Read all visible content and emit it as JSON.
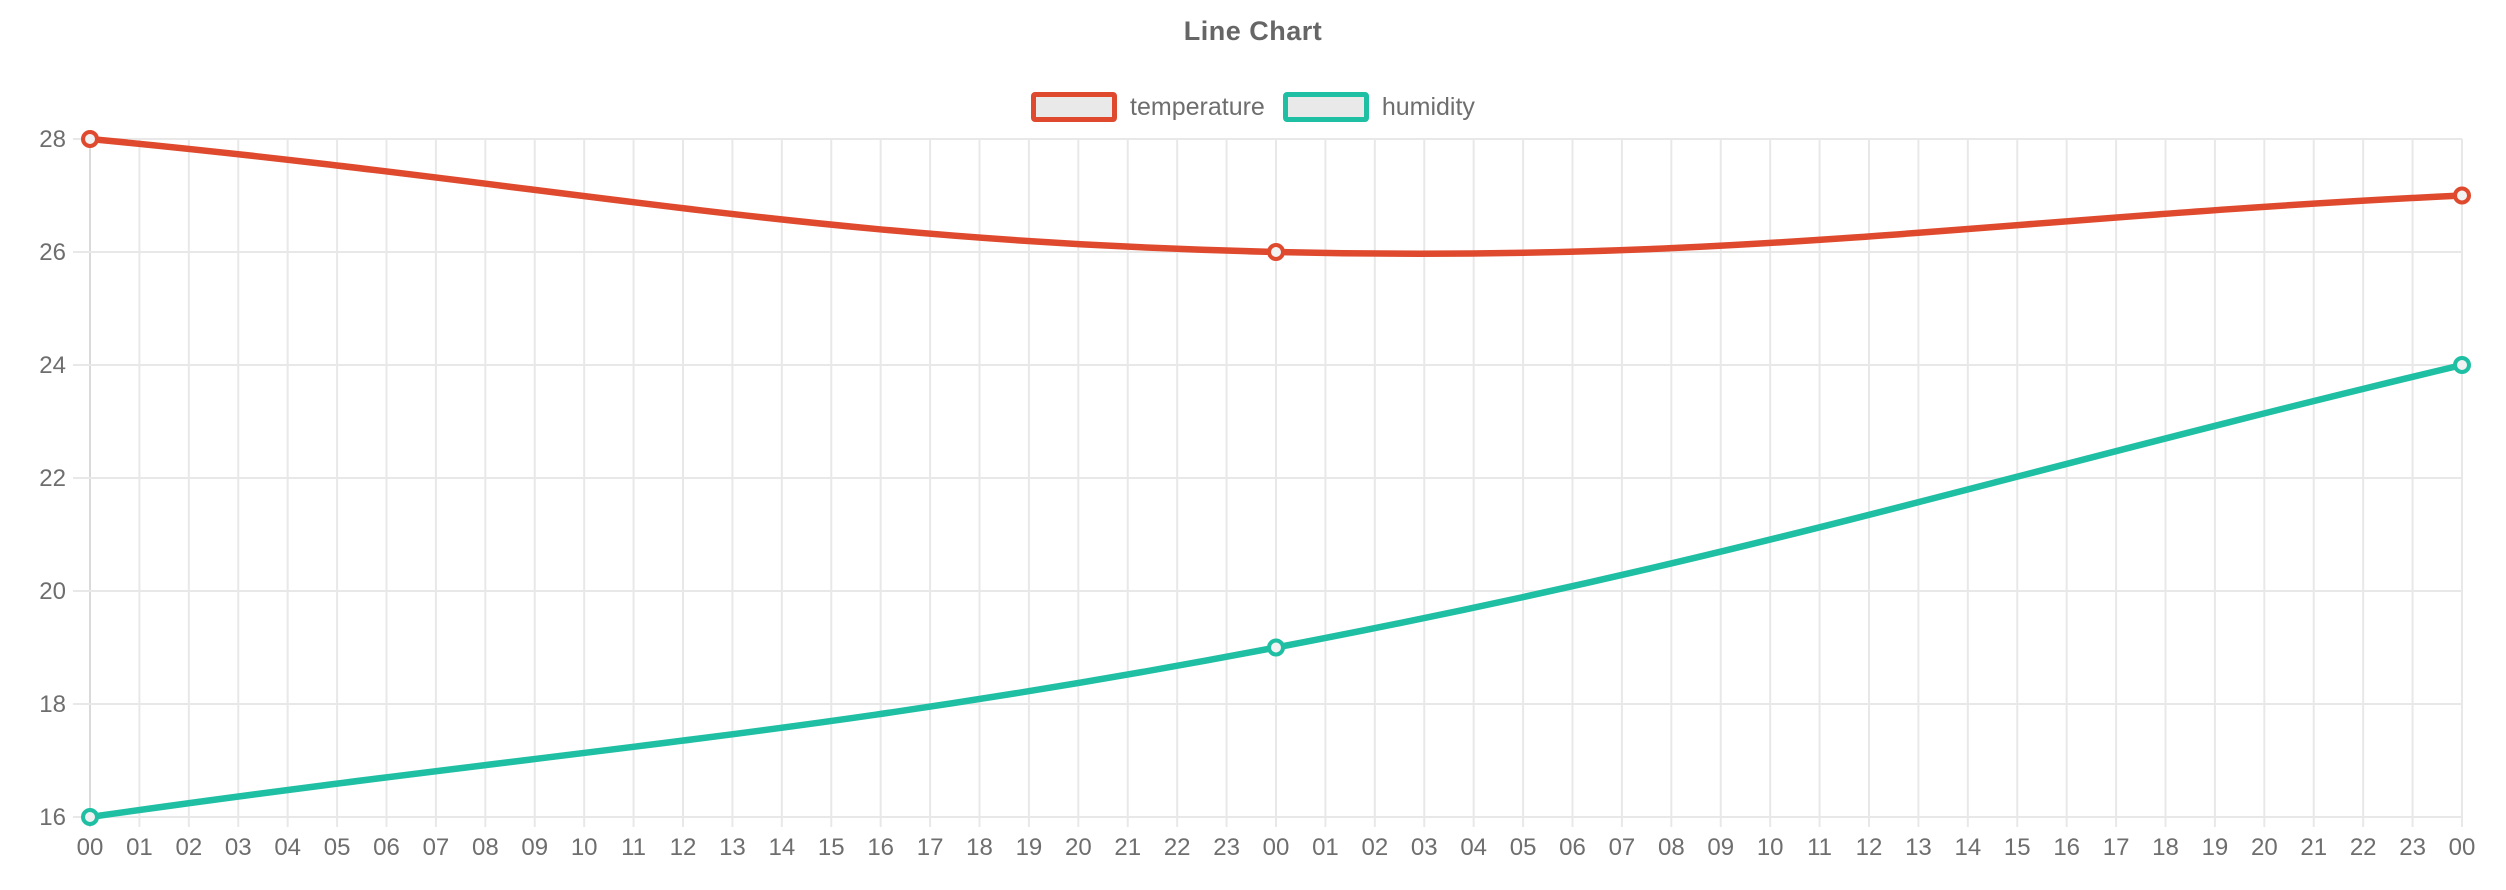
{
  "chart_data": {
    "type": "line",
    "title": "Line Chart",
    "categories": [
      "00",
      "01",
      "02",
      "03",
      "04",
      "05",
      "06",
      "07",
      "08",
      "09",
      "10",
      "11",
      "12",
      "13",
      "14",
      "15",
      "16",
      "17",
      "18",
      "19",
      "20",
      "21",
      "22",
      "23",
      "00",
      "01",
      "02",
      "03",
      "04",
      "05",
      "06",
      "07",
      "08",
      "09",
      "10",
      "11",
      "12",
      "13",
      "14",
      "15",
      "16",
      "17",
      "18",
      "19",
      "20",
      "21",
      "22",
      "23",
      "00"
    ],
    "y_axis": {
      "min": 16,
      "max": 28,
      "step": 2,
      "tick_labels": [
        "16",
        "18",
        "20",
        "22",
        "24",
        "26",
        "28"
      ]
    },
    "legend": {
      "position": "top",
      "entries": [
        "temperature",
        "humidity"
      ]
    },
    "grid": true,
    "line_tension": 0.4,
    "series": [
      {
        "name": "temperature",
        "color": "#df4a2e",
        "marker_fill": "#f2f2f2",
        "points": [
          {
            "category_index": 0,
            "label": "00",
            "value": 28
          },
          {
            "category_index": 24,
            "label": "00",
            "value": 26
          },
          {
            "category_index": 48,
            "label": "00",
            "value": 27
          }
        ]
      },
      {
        "name": "humidity",
        "color": "#1fbfa4",
        "marker_fill": "#f2f2f2",
        "points": [
          {
            "category_index": 0,
            "label": "00",
            "value": 16
          },
          {
            "category_index": 24,
            "label": "00",
            "value": 19
          },
          {
            "category_index": 48,
            "label": "00",
            "value": 24
          }
        ]
      }
    ]
  }
}
